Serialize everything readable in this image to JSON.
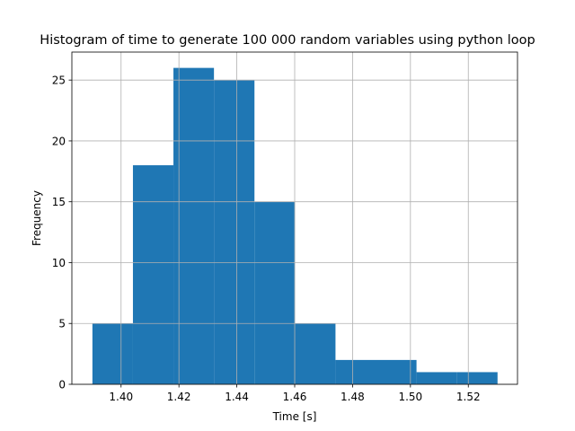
{
  "chart_data": {
    "type": "bar",
    "title": "Histogram of time to generate 100 000 random variables using python loop",
    "xlabel": "Time [s]",
    "ylabel": "Frequency",
    "bins": [
      {
        "start": 1.3901,
        "end": 1.4041,
        "count": 5
      },
      {
        "start": 1.4041,
        "end": 1.4181,
        "count": 18
      },
      {
        "start": 1.4181,
        "end": 1.4321,
        "count": 26
      },
      {
        "start": 1.4321,
        "end": 1.4461,
        "count": 25
      },
      {
        "start": 1.4461,
        "end": 1.4601,
        "count": 15
      },
      {
        "start": 1.4601,
        "end": 1.4741,
        "count": 5
      },
      {
        "start": 1.4741,
        "end": 1.4881,
        "count": 2
      },
      {
        "start": 1.4881,
        "end": 1.5021,
        "count": 2
      },
      {
        "start": 1.5021,
        "end": 1.5161,
        "count": 1
      },
      {
        "start": 1.5161,
        "end": 1.5301,
        "count": 1
      }
    ],
    "xlim": [
      1.383,
      1.537
    ],
    "ylim": [
      0,
      27.3
    ],
    "xticks": [
      1.4,
      1.42,
      1.44,
      1.46,
      1.48,
      1.5,
      1.52
    ],
    "xtick_labels": [
      "1.40",
      "1.42",
      "1.44",
      "1.46",
      "1.48",
      "1.50",
      "1.52"
    ],
    "yticks": [
      0,
      5,
      10,
      15,
      20,
      25
    ],
    "ytick_labels": [
      "0",
      "5",
      "10",
      "15",
      "20",
      "25"
    ],
    "grid": true,
    "bar_color": "#1f77b4",
    "grid_color": "#b0b0b0"
  }
}
